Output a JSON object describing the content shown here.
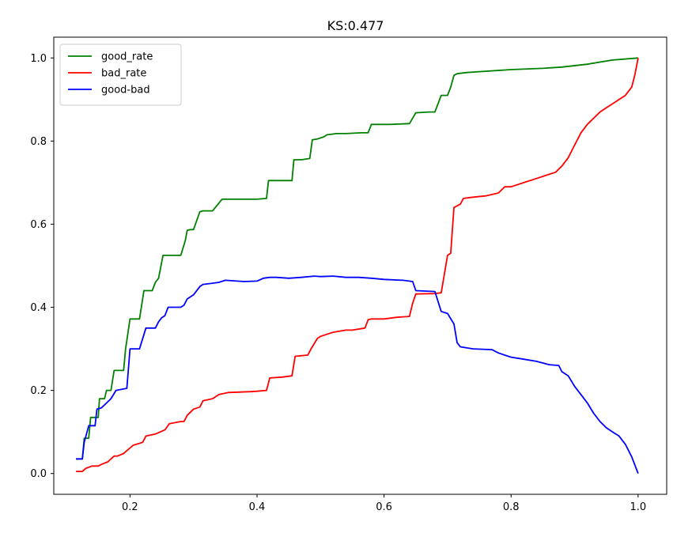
{
  "chart_data": {
    "type": "line",
    "title": "KS:0.477",
    "xlabel": "",
    "ylabel": "",
    "xlim": [
      0.08,
      1.045
    ],
    "ylim": [
      -0.05,
      1.05
    ],
    "xticks": [
      0.2,
      0.4,
      0.6,
      0.8,
      1.0
    ],
    "xtick_labels": [
      "0.2",
      "0.4",
      "0.6",
      "0.8",
      "1.0"
    ],
    "yticks": [
      0.0,
      0.2,
      0.4,
      0.6,
      0.8,
      1.0
    ],
    "ytick_labels": [
      "0.0",
      "0.2",
      "0.4",
      "0.6",
      "0.8",
      "1.0"
    ],
    "grid": false,
    "legend_position": "top-left",
    "series": [
      {
        "name": "good_rate",
        "color": "#008000",
        "x": [
          0.115,
          0.125,
          0.128,
          0.135,
          0.138,
          0.15,
          0.152,
          0.16,
          0.163,
          0.17,
          0.175,
          0.18,
          0.19,
          0.193,
          0.2,
          0.205,
          0.215,
          0.222,
          0.235,
          0.24,
          0.245,
          0.252,
          0.268,
          0.28,
          0.287,
          0.29,
          0.295,
          0.3,
          0.31,
          0.315,
          0.33,
          0.345,
          0.36,
          0.4,
          0.415,
          0.418,
          0.44,
          0.455,
          0.458,
          0.47,
          0.483,
          0.487,
          0.495,
          0.505,
          0.51,
          0.525,
          0.54,
          0.565,
          0.575,
          0.58,
          0.59,
          0.61,
          0.64,
          0.65,
          0.67,
          0.68,
          0.69,
          0.7,
          0.705,
          0.71,
          0.715,
          0.73,
          0.75,
          0.8,
          0.85,
          0.88,
          0.92,
          0.94,
          0.96,
          1.0
        ],
        "y": [
          0.035,
          0.035,
          0.085,
          0.085,
          0.135,
          0.135,
          0.18,
          0.18,
          0.2,
          0.2,
          0.248,
          0.248,
          0.248,
          0.3,
          0.372,
          0.372,
          0.372,
          0.44,
          0.44,
          0.46,
          0.47,
          0.525,
          0.525,
          0.525,
          0.56,
          0.585,
          0.587,
          0.587,
          0.63,
          0.632,
          0.632,
          0.66,
          0.66,
          0.66,
          0.662,
          0.705,
          0.705,
          0.705,
          0.755,
          0.755,
          0.758,
          0.803,
          0.805,
          0.81,
          0.815,
          0.818,
          0.818,
          0.82,
          0.82,
          0.84,
          0.84,
          0.84,
          0.842,
          0.868,
          0.87,
          0.87,
          0.91,
          0.91,
          0.93,
          0.958,
          0.962,
          0.965,
          0.967,
          0.972,
          0.975,
          0.978,
          0.985,
          0.99,
          0.995,
          1.0
        ]
      },
      {
        "name": "bad_rate",
        "color": "#ff0000",
        "x": [
          0.115,
          0.125,
          0.13,
          0.14,
          0.15,
          0.155,
          0.165,
          0.175,
          0.18,
          0.19,
          0.195,
          0.205,
          0.22,
          0.225,
          0.24,
          0.255,
          0.262,
          0.28,
          0.285,
          0.29,
          0.3,
          0.31,
          0.315,
          0.33,
          0.34,
          0.355,
          0.39,
          0.4,
          0.415,
          0.42,
          0.44,
          0.455,
          0.46,
          0.48,
          0.485,
          0.495,
          0.5,
          0.51,
          0.52,
          0.54,
          0.55,
          0.57,
          0.575,
          0.58,
          0.6,
          0.62,
          0.64,
          0.645,
          0.65,
          0.68,
          0.69,
          0.7,
          0.705,
          0.71,
          0.72,
          0.725,
          0.74,
          0.76,
          0.78,
          0.79,
          0.8,
          0.82,
          0.84,
          0.86,
          0.87,
          0.88,
          0.89,
          0.9,
          0.91,
          0.92,
          0.94,
          0.95,
          0.96,
          0.97,
          0.98,
          0.99,
          0.995,
          1.0
        ],
        "y": [
          0.005,
          0.005,
          0.012,
          0.018,
          0.018,
          0.022,
          0.028,
          0.042,
          0.042,
          0.048,
          0.055,
          0.068,
          0.075,
          0.09,
          0.095,
          0.105,
          0.12,
          0.125,
          0.125,
          0.14,
          0.155,
          0.16,
          0.175,
          0.18,
          0.19,
          0.195,
          0.197,
          0.198,
          0.2,
          0.23,
          0.232,
          0.235,
          0.282,
          0.285,
          0.3,
          0.325,
          0.33,
          0.335,
          0.34,
          0.345,
          0.345,
          0.35,
          0.37,
          0.372,
          0.372,
          0.376,
          0.378,
          0.41,
          0.432,
          0.433,
          0.435,
          0.525,
          0.53,
          0.64,
          0.648,
          0.662,
          0.665,
          0.668,
          0.675,
          0.69,
          0.69,
          0.7,
          0.71,
          0.72,
          0.725,
          0.74,
          0.76,
          0.79,
          0.82,
          0.84,
          0.87,
          0.88,
          0.89,
          0.9,
          0.91,
          0.93,
          0.96,
          1.0
        ]
      },
      {
        "name": "good-bad",
        "color": "#0000ff",
        "x": [
          0.115,
          0.125,
          0.128,
          0.135,
          0.145,
          0.148,
          0.155,
          0.16,
          0.17,
          0.178,
          0.195,
          0.2,
          0.215,
          0.225,
          0.24,
          0.245,
          0.25,
          0.255,
          0.26,
          0.28,
          0.285,
          0.29,
          0.3,
          0.31,
          0.315,
          0.33,
          0.34,
          0.35,
          0.38,
          0.4,
          0.41,
          0.42,
          0.43,
          0.45,
          0.47,
          0.49,
          0.5,
          0.52,
          0.54,
          0.56,
          0.58,
          0.6,
          0.63,
          0.645,
          0.65,
          0.68,
          0.69,
          0.7,
          0.71,
          0.715,
          0.72,
          0.74,
          0.77,
          0.78,
          0.8,
          0.82,
          0.84,
          0.86,
          0.875,
          0.88,
          0.89,
          0.9,
          0.91,
          0.92,
          0.93,
          0.94,
          0.95,
          0.96,
          0.97,
          0.98,
          0.99,
          1.0
        ],
        "y": [
          0.035,
          0.035,
          0.075,
          0.115,
          0.115,
          0.155,
          0.158,
          0.165,
          0.18,
          0.2,
          0.205,
          0.3,
          0.3,
          0.35,
          0.35,
          0.365,
          0.375,
          0.38,
          0.4,
          0.4,
          0.405,
          0.42,
          0.43,
          0.45,
          0.455,
          0.458,
          0.46,
          0.465,
          0.462,
          0.463,
          0.47,
          0.472,
          0.472,
          0.47,
          0.472,
          0.475,
          0.474,
          0.475,
          0.472,
          0.472,
          0.47,
          0.467,
          0.465,
          0.462,
          0.44,
          0.438,
          0.39,
          0.385,
          0.36,
          0.315,
          0.305,
          0.3,
          0.298,
          0.29,
          0.28,
          0.275,
          0.27,
          0.262,
          0.26,
          0.245,
          0.235,
          0.21,
          0.19,
          0.17,
          0.145,
          0.125,
          0.11,
          0.1,
          0.09,
          0.07,
          0.04,
          0.0
        ]
      }
    ]
  }
}
